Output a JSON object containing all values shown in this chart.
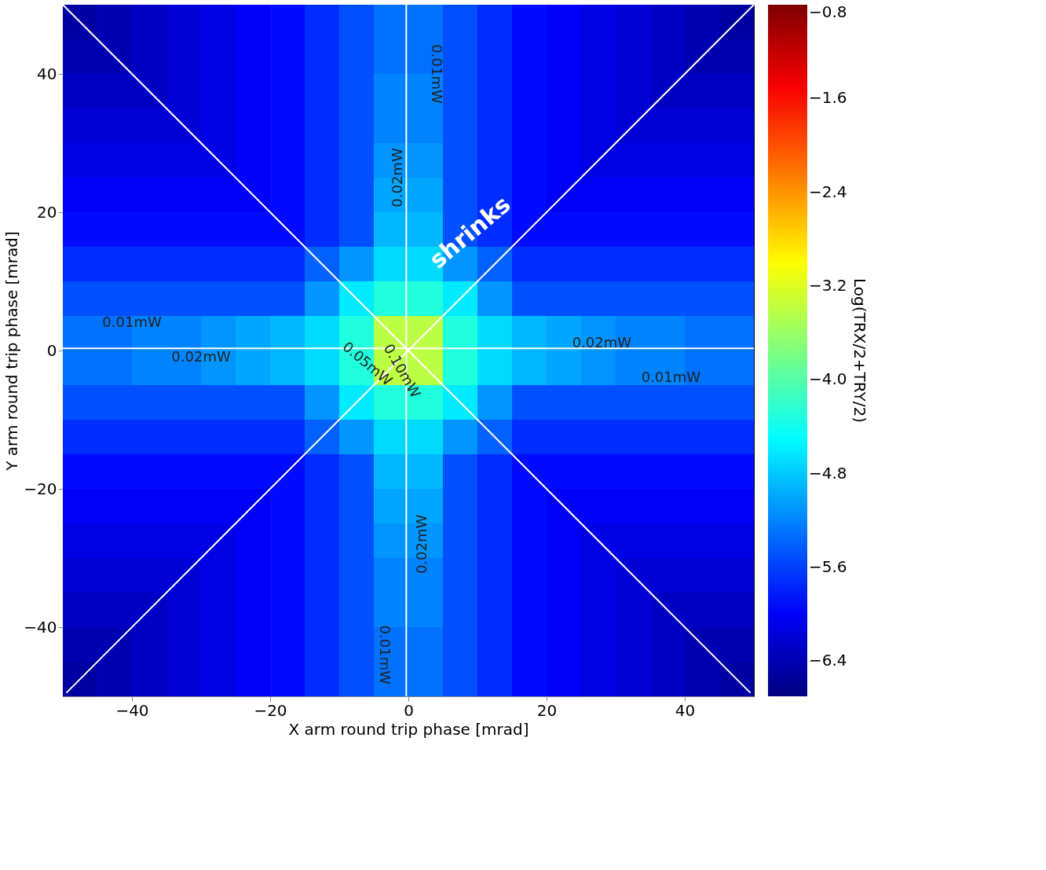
{
  "chart_data": {
    "type": "heatmap",
    "xlabel": "X arm round trip phase [mrad]",
    "ylabel": "Y arm round trip phase [mrad]",
    "clabel": "Log(TRX/2+TRY/2)",
    "x": [
      -47.5,
      -42.5,
      -37.5,
      -32.5,
      -27.5,
      -22.5,
      -17.5,
      -12.5,
      -7.5,
      -2.5,
      2.5,
      7.5,
      12.5,
      17.5,
      22.5,
      27.5,
      32.5,
      37.5,
      42.5,
      47.5
    ],
    "y": [
      47.5,
      42.5,
      37.5,
      32.5,
      27.5,
      22.5,
      17.5,
      12.5,
      7.5,
      2.5,
      -2.5,
      -7.5,
      -12.5,
      -17.5,
      -22.5,
      -27.5,
      -32.5,
      -37.5,
      -42.5,
      -47.5
    ],
    "cells": [
      [
        -6.5,
        -6.4,
        -6.3,
        -6.2,
        -6.1,
        -6.0,
        -5.9,
        -5.7,
        -5.5,
        -5.3,
        -5.3,
        -5.5,
        -5.7,
        -5.9,
        -6.0,
        -6.1,
        -6.2,
        -6.3,
        -6.4,
        -6.5
      ],
      [
        -6.4,
        -6.4,
        -6.3,
        -6.2,
        -6.1,
        -6.0,
        -5.9,
        -5.7,
        -5.5,
        -5.3,
        -5.3,
        -5.5,
        -5.7,
        -5.9,
        -6.0,
        -6.1,
        -6.2,
        -6.3,
        -6.4,
        -6.4
      ],
      [
        -6.3,
        -6.3,
        -6.3,
        -6.2,
        -6.1,
        -6.0,
        -5.9,
        -5.7,
        -5.5,
        -5.2,
        -5.2,
        -5.5,
        -5.7,
        -5.9,
        -6.0,
        -6.1,
        -6.2,
        -6.3,
        -6.3,
        -6.3
      ],
      [
        -6.2,
        -6.2,
        -6.2,
        -6.2,
        -6.1,
        -6.0,
        -5.9,
        -5.7,
        -5.5,
        -5.2,
        -5.2,
        -5.5,
        -5.7,
        -5.9,
        -6.0,
        -6.1,
        -6.2,
        -6.2,
        -6.2,
        -6.2
      ],
      [
        -6.1,
        -6.1,
        -6.1,
        -6.1,
        -6.1,
        -6.0,
        -5.9,
        -5.7,
        -5.5,
        -5.1,
        -5.1,
        -5.5,
        -5.7,
        -5.9,
        -6.0,
        -6.1,
        -6.1,
        -6.1,
        -6.1,
        -6.1
      ],
      [
        -6.0,
        -6.0,
        -6.0,
        -6.0,
        -6.0,
        -6.0,
        -5.9,
        -5.7,
        -5.5,
        -5.0,
        -5.0,
        -5.5,
        -5.7,
        -5.9,
        -6.0,
        -6.0,
        -6.0,
        -6.0,
        -6.0,
        -6.0
      ],
      [
        -5.9,
        -5.9,
        -5.9,
        -5.9,
        -5.9,
        -5.9,
        -5.9,
        -5.7,
        -5.5,
        -4.9,
        -4.9,
        -5.5,
        -5.7,
        -5.9,
        -5.9,
        -5.9,
        -5.9,
        -5.9,
        -5.9,
        -5.9
      ],
      [
        -5.7,
        -5.7,
        -5.7,
        -5.7,
        -5.7,
        -5.7,
        -5.7,
        -5.4,
        -5.1,
        -4.7,
        -4.7,
        -5.1,
        -5.4,
        -5.7,
        -5.7,
        -5.7,
        -5.7,
        -5.7,
        -5.7,
        -5.7
      ],
      [
        -5.5,
        -5.5,
        -5.5,
        -5.5,
        -5.5,
        -5.5,
        -5.5,
        -5.1,
        -4.6,
        -4.3,
        -4.3,
        -4.6,
        -5.1,
        -5.5,
        -5.5,
        -5.5,
        -5.5,
        -5.5,
        -5.5,
        -5.5
      ],
      [
        -5.3,
        -5.3,
        -5.2,
        -5.2,
        -5.1,
        -5.0,
        -4.9,
        -4.7,
        -4.3,
        -3.4,
        -3.4,
        -4.3,
        -4.7,
        -4.9,
        -5.0,
        -5.1,
        -5.2,
        -5.2,
        -5.3,
        -5.3
      ],
      [
        -5.3,
        -5.3,
        -5.2,
        -5.2,
        -5.1,
        -5.0,
        -4.9,
        -4.7,
        -4.3,
        -3.4,
        -3.4,
        -4.3,
        -4.7,
        -4.9,
        -5.0,
        -5.1,
        -5.2,
        -5.2,
        -5.3,
        -5.3
      ],
      [
        -5.5,
        -5.5,
        -5.5,
        -5.5,
        -5.5,
        -5.5,
        -5.5,
        -5.1,
        -4.6,
        -4.3,
        -4.3,
        -4.6,
        -5.1,
        -5.5,
        -5.5,
        -5.5,
        -5.5,
        -5.5,
        -5.5,
        -5.5
      ],
      [
        -5.7,
        -5.7,
        -5.7,
        -5.7,
        -5.7,
        -5.7,
        -5.7,
        -5.4,
        -5.1,
        -4.7,
        -4.7,
        -5.1,
        -5.4,
        -5.7,
        -5.7,
        -5.7,
        -5.7,
        -5.7,
        -5.7,
        -5.7
      ],
      [
        -5.9,
        -5.9,
        -5.9,
        -5.9,
        -5.9,
        -5.9,
        -5.9,
        -5.7,
        -5.5,
        -4.9,
        -4.9,
        -5.5,
        -5.7,
        -5.9,
        -5.9,
        -5.9,
        -5.9,
        -5.9,
        -5.9,
        -5.9
      ],
      [
        -6.0,
        -6.0,
        -6.0,
        -6.0,
        -6.0,
        -6.0,
        -5.9,
        -5.7,
        -5.5,
        -5.0,
        -5.0,
        -5.5,
        -5.7,
        -5.9,
        -6.0,
        -6.0,
        -6.0,
        -6.0,
        -6.0,
        -6.0
      ],
      [
        -6.1,
        -6.1,
        -6.1,
        -6.1,
        -6.1,
        -6.0,
        -5.9,
        -5.7,
        -5.5,
        -5.1,
        -5.1,
        -5.5,
        -5.7,
        -5.9,
        -6.0,
        -6.1,
        -6.1,
        -6.1,
        -6.1,
        -6.1
      ],
      [
        -6.2,
        -6.2,
        -6.2,
        -6.2,
        -6.1,
        -6.0,
        -5.9,
        -5.7,
        -5.5,
        -5.2,
        -5.2,
        -5.5,
        -5.7,
        -5.9,
        -6.0,
        -6.1,
        -6.2,
        -6.2,
        -6.2,
        -6.2
      ],
      [
        -6.3,
        -6.3,
        -6.3,
        -6.2,
        -6.1,
        -6.0,
        -5.9,
        -5.7,
        -5.5,
        -5.2,
        -5.2,
        -5.5,
        -5.7,
        -5.9,
        -6.0,
        -6.1,
        -6.2,
        -6.3,
        -6.3,
        -6.3
      ],
      [
        -6.4,
        -6.4,
        -6.3,
        -6.2,
        -6.1,
        -6.0,
        -5.9,
        -5.7,
        -5.5,
        -5.3,
        -5.3,
        -5.5,
        -5.7,
        -5.9,
        -6.0,
        -6.1,
        -6.2,
        -6.3,
        -6.4,
        -6.4
      ],
      [
        -6.5,
        -6.4,
        -6.3,
        -6.2,
        -6.1,
        -6.0,
        -5.9,
        -5.7,
        -5.5,
        -5.3,
        -5.3,
        -5.5,
        -5.7,
        -5.9,
        -6.0,
        -6.1,
        -6.2,
        -6.3,
        -6.4,
        -6.5
      ]
    ],
    "clim": [
      -6.7,
      -0.8
    ],
    "cticks": [
      -0.8,
      -1.6,
      -2.4,
      -3.2,
      {
        "value": -4,
        "label": "−4.0"
      },
      -4.8,
      -5.6,
      -6.4
    ],
    "xlim": [
      -50,
      50
    ],
    "ylim": [
      -50,
      50
    ],
    "xticks": [
      -40,
      -20,
      0,
      20,
      40
    ],
    "yticks": [
      -40,
      -20,
      0,
      20,
      40
    ],
    "ref_lines": [
      {
        "axis": "x",
        "value": -0.3,
        "color": "#ffffff"
      },
      {
        "axis": "y",
        "value": 0.3,
        "color": "#ffffff"
      }
    ],
    "series": [
      {
        "type": "line",
        "color": "#ffffff",
        "x": [
          -49.5,
          50
        ],
        "values": [
          -49.5,
          50
        ]
      },
      {
        "type": "line",
        "color": "#ffffff",
        "x": [
          -50,
          49.5
        ],
        "values": [
          50,
          -49.5
        ]
      }
    ],
    "annotations": [
      "0.01mW",
      "0.01mW",
      "0.01mW",
      "0.01mW",
      "0.02mW",
      "0.02mW",
      "0.02mW",
      "0.02mW",
      "0.05mW",
      "0.10mW",
      "shrinks"
    ]
  }
}
